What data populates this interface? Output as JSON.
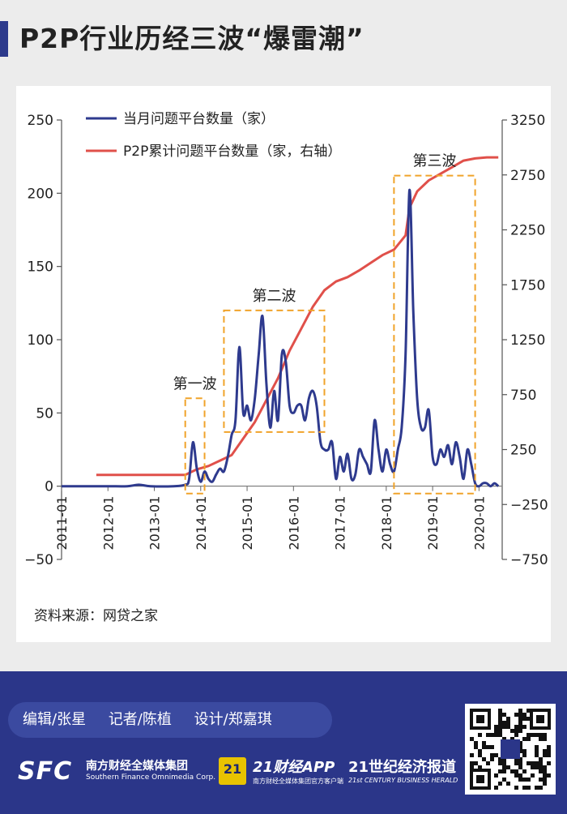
{
  "title": "P2P行业历经三波“爆雷潮”",
  "source": "资料来源：网贷之家",
  "credits": [
    "编辑/张星",
    "记者/陈植",
    "设计/郑嘉琪"
  ],
  "brands": {
    "sfc_logo": "SFC",
    "sfc_cn": "南方财经全媒体集团",
    "sfc_en": "Southern Finance Omnimedia Corp.",
    "app_badge": "21",
    "app_name": "21财经APP",
    "app_sub": "南方财经全媒体集团官方客户端",
    "herald_cn": "21世纪经济报道",
    "herald_en": "21st CENTURY BUSINESS HERALD"
  },
  "colors": {
    "monthly": "#2e3a8e",
    "cumulative": "#e0504a",
    "box": "#f0a32a",
    "brand": "#2b3689"
  },
  "chart_data": {
    "type": "line",
    "x_ticks": [
      "2011-01",
      "2012-01",
      "2013-01",
      "2014-01",
      "2015-01",
      "2016-01",
      "2017-01",
      "2018-01",
      "2019-01",
      "2020-01"
    ],
    "ylim_left": [
      -50,
      250
    ],
    "ylim_right": [
      -750,
      3250
    ],
    "y_ticks_left": [
      "250",
      "200",
      "150",
      "100",
      "50",
      "0",
      "−50"
    ],
    "y_ticks_right": [
      "3250",
      "2750",
      "2250",
      "1750",
      "1250",
      "750",
      "250",
      "−250",
      "−750"
    ],
    "series": [
      {
        "name": "当月问题平台数量（家）",
        "axis": "left",
        "points": [
          [
            "2011-01",
            0
          ],
          [
            "2011-06",
            0
          ],
          [
            "2012-01",
            0
          ],
          [
            "2012-06",
            0
          ],
          [
            "2012-09",
            1
          ],
          [
            "2012-12",
            0
          ],
          [
            "2013-06",
            0
          ],
          [
            "2013-09",
            1
          ],
          [
            "2013-10",
            5
          ],
          [
            "2013-11",
            30
          ],
          [
            "2013-12",
            12
          ],
          [
            "2014-01",
            3
          ],
          [
            "2014-02",
            10
          ],
          [
            "2014-03",
            5
          ],
          [
            "2014-04",
            3
          ],
          [
            "2014-05",
            8
          ],
          [
            "2014-06",
            12
          ],
          [
            "2014-07",
            10
          ],
          [
            "2014-08",
            20
          ],
          [
            "2014-09",
            35
          ],
          [
            "2014-10",
            45
          ],
          [
            "2014-11",
            95
          ],
          [
            "2014-12",
            50
          ],
          [
            "2015-01",
            55
          ],
          [
            "2015-02",
            45
          ],
          [
            "2015-03",
            60
          ],
          [
            "2015-04",
            90
          ],
          [
            "2015-05",
            116
          ],
          [
            "2015-06",
            70
          ],
          [
            "2015-07",
            40
          ],
          [
            "2015-08",
            65
          ],
          [
            "2015-09",
            45
          ],
          [
            "2015-10",
            90
          ],
          [
            "2015-11",
            85
          ],
          [
            "2015-12",
            55
          ],
          [
            "2016-01",
            50
          ],
          [
            "2016-02",
            55
          ],
          [
            "2016-03",
            55
          ],
          [
            "2016-04",
            45
          ],
          [
            "2016-05",
            60
          ],
          [
            "2016-06",
            65
          ],
          [
            "2016-07",
            55
          ],
          [
            "2016-08",
            30
          ],
          [
            "2016-09",
            25
          ],
          [
            "2016-10",
            25
          ],
          [
            "2016-11",
            30
          ],
          [
            "2016-12",
            5
          ],
          [
            "2017-01",
            20
          ],
          [
            "2017-02",
            10
          ],
          [
            "2017-03",
            22
          ],
          [
            "2017-04",
            5
          ],
          [
            "2017-05",
            8
          ],
          [
            "2017-06",
            25
          ],
          [
            "2017-07",
            20
          ],
          [
            "2017-08",
            15
          ],
          [
            "2017-09",
            10
          ],
          [
            "2017-10",
            45
          ],
          [
            "2017-11",
            25
          ],
          [
            "2017-12",
            10
          ],
          [
            "2018-01",
            25
          ],
          [
            "2018-02",
            15
          ],
          [
            "2018-03",
            10
          ],
          [
            "2018-04",
            25
          ],
          [
            "2018-05",
            40
          ],
          [
            "2018-06",
            90
          ],
          [
            "2018-07",
            202
          ],
          [
            "2018-08",
            120
          ],
          [
            "2018-09",
            60
          ],
          [
            "2018-10",
            40
          ],
          [
            "2018-11",
            40
          ],
          [
            "2018-12",
            52
          ],
          [
            "2019-01",
            20
          ],
          [
            "2019-02",
            15
          ],
          [
            "2019-03",
            25
          ],
          [
            "2019-04",
            20
          ],
          [
            "2019-05",
            28
          ],
          [
            "2019-06",
            15
          ],
          [
            "2019-07",
            30
          ],
          [
            "2019-08",
            20
          ],
          [
            "2019-09",
            5
          ],
          [
            "2019-10",
            25
          ],
          [
            "2019-11",
            15
          ],
          [
            "2019-12",
            2
          ],
          [
            "2020-01",
            0
          ],
          [
            "2020-02",
            2
          ],
          [
            "2020-03",
            2
          ],
          [
            "2020-04",
            0
          ],
          [
            "2020-05",
            2
          ],
          [
            "2020-06",
            0
          ]
        ]
      },
      {
        "name": "P2P累计问题平台数量（家，右轴）",
        "axis": "right",
        "points": [
          [
            "2011-10",
            20
          ],
          [
            "2012-06",
            20
          ],
          [
            "2013-01",
            20
          ],
          [
            "2013-06",
            20
          ],
          [
            "2013-09",
            20
          ],
          [
            "2013-12",
            70
          ],
          [
            "2014-03",
            100
          ],
          [
            "2014-06",
            150
          ],
          [
            "2014-09",
            200
          ],
          [
            "2014-12",
            350
          ],
          [
            "2015-03",
            500
          ],
          [
            "2015-06",
            700
          ],
          [
            "2015-09",
            900
          ],
          [
            "2015-12",
            1150
          ],
          [
            "2016-03",
            1350
          ],
          [
            "2016-06",
            1550
          ],
          [
            "2016-09",
            1700
          ],
          [
            "2016-12",
            1780
          ],
          [
            "2017-03",
            1820
          ],
          [
            "2017-06",
            1880
          ],
          [
            "2017-09",
            1950
          ],
          [
            "2017-12",
            2020
          ],
          [
            "2018-03",
            2070
          ],
          [
            "2018-06",
            2200
          ],
          [
            "2018-07",
            2450
          ],
          [
            "2018-09",
            2600
          ],
          [
            "2018-12",
            2700
          ],
          [
            "2019-03",
            2760
          ],
          [
            "2019-06",
            2820
          ],
          [
            "2019-09",
            2880
          ],
          [
            "2019-12",
            2900
          ],
          [
            "2020-03",
            2910
          ],
          [
            "2020-06",
            2910
          ]
        ]
      }
    ],
    "annotations": [
      {
        "label": "第一波",
        "x_start": "2013-09",
        "x_end": "2014-02",
        "y_top": 60,
        "y_bottom": -5
      },
      {
        "label": "第二波",
        "x_start": "2014-07",
        "x_end": "2016-09",
        "y_top": 120,
        "y_bottom": 37
      },
      {
        "label": "第三波",
        "x_start": "2018-03",
        "x_end": "2019-12",
        "y_top": 212,
        "y_bottom": -5
      }
    ],
    "legend_position": "top-left",
    "grid": false
  }
}
